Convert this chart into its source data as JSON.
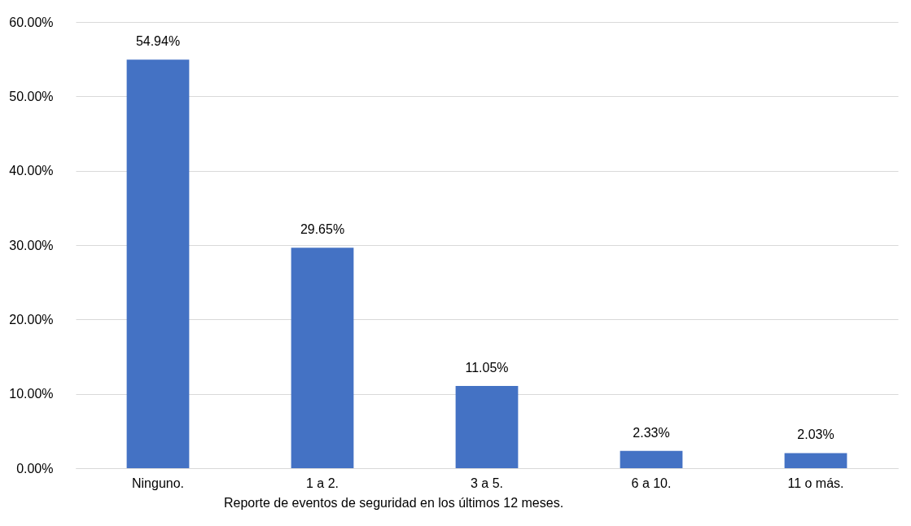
{
  "chart_data": {
    "type": "bar",
    "xlabel": "Reporte de eventos de seguridad en los últimos 12 meses.",
    "categories": [
      "Ninguno.",
      "1 a 2.",
      "3 a 5.",
      "6 a 10.",
      "11 o más."
    ],
    "values": [
      54.94,
      29.65,
      11.05,
      2.33,
      2.03
    ],
    "value_labels": [
      "54.94%",
      "29.65%",
      "11.05%",
      "2.33%",
      "2.03%"
    ],
    "color": "#4472c4",
    "ylim": [
      0,
      60
    ],
    "yticks": [
      {
        "value": 0,
        "label": "0.00%"
      },
      {
        "value": 10,
        "label": "10.00%"
      },
      {
        "value": 20,
        "label": "20.00%"
      },
      {
        "value": 30,
        "label": "30.00%"
      },
      {
        "value": 40,
        "label": "40.00%"
      },
      {
        "value": 50,
        "label": "50.00%"
      },
      {
        "value": 60,
        "label": "60.00%"
      }
    ],
    "grid": "y"
  }
}
